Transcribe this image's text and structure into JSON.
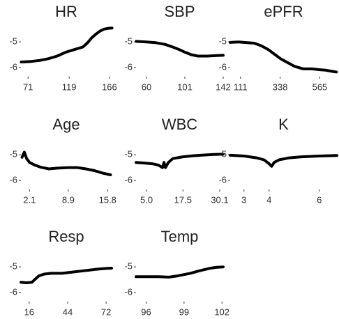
{
  "chart_data": [
    {
      "type": "line",
      "title": "HR",
      "color": "#000000",
      "x": [
        63,
        75,
        85,
        95,
        105,
        115,
        120,
        125,
        135,
        140,
        145,
        150,
        155,
        160,
        165,
        169
      ],
      "values": [
        -5.78,
        -5.76,
        -5.72,
        -5.65,
        -5.55,
        -5.4,
        -5.35,
        -5.3,
        -5.2,
        -5.05,
        -4.85,
        -4.7,
        -4.58,
        -4.5,
        -4.47,
        -4.46
      ],
      "xlim": [
        62.7,
        168.5
      ],
      "xticks": [
        71,
        119,
        166
      ],
      "ylim": [
        -6.35,
        -4.4
      ],
      "yticks": [
        -5,
        -6
      ]
    },
    {
      "type": "line",
      "title": "SBP",
      "color": "#000000",
      "x": [
        49,
        60,
        70,
        80,
        88,
        95,
        101,
        108,
        115,
        125,
        135,
        142
      ],
      "values": [
        -4.98,
        -5.0,
        -5.03,
        -5.1,
        -5.2,
        -5.3,
        -5.4,
        -5.5,
        -5.55,
        -5.55,
        -5.53,
        -5.52
      ],
      "xlim": [
        48.8,
        142
      ],
      "xticks": [
        60,
        101,
        142
      ],
      "ylim": [
        -6.35,
        -4.4
      ],
      "yticks": [
        -5,
        -6
      ]
    },
    {
      "type": "line",
      "title": "ePFR",
      "color": "#000000",
      "x": [
        52,
        100,
        150,
        190,
        230,
        270,
        310,
        340,
        380,
        420,
        470,
        520,
        560,
        600,
        640,
        660
      ],
      "values": [
        -5.02,
        -5.0,
        -5.03,
        -5.05,
        -5.15,
        -5.3,
        -5.5,
        -5.65,
        -5.8,
        -5.95,
        -6.05,
        -6.05,
        -6.08,
        -6.1,
        -6.15,
        -6.17
      ],
      "xlim": [
        52,
        663
      ],
      "xticks": [
        111,
        338,
        565
      ],
      "ylim": [
        -6.35,
        -4.4
      ],
      "yticks": [
        -5,
        -6
      ]
    },
    {
      "type": "line",
      "title": "Age",
      "color": "#000000",
      "x": [
        0.8,
        1.2,
        1.6,
        2.1,
        3,
        4,
        5.5,
        7,
        8.9,
        10.5,
        12,
        13.5,
        15,
        16.3
      ],
      "values": [
        -5.1,
        -4.9,
        -5.15,
        -5.3,
        -5.4,
        -5.48,
        -5.55,
        -5.52,
        -5.5,
        -5.5,
        -5.55,
        -5.62,
        -5.72,
        -5.78
      ],
      "xlim": [
        0.6,
        16.5
      ],
      "xticks": [
        2.1,
        8.9,
        15.8
      ],
      "ylim": [
        -6.35,
        -4.4
      ],
      "yticks": [
        -5,
        -6
      ]
    },
    {
      "type": "line",
      "title": "WBC",
      "color": "#000000",
      "x": [
        1.4,
        4,
        7,
        9,
        10.5,
        11,
        11.5,
        12.5,
        14,
        17.5,
        21,
        25,
        28,
        31.3
      ],
      "values": [
        -5.3,
        -5.32,
        -5.35,
        -5.4,
        -5.5,
        -5.3,
        -5.5,
        -5.3,
        -5.15,
        -5.08,
        -5.04,
        -5.01,
        -4.99,
        -4.98
      ],
      "xlim": [
        1.4,
        31.3
      ],
      "xticks": [
        {
          "value": 5,
          "label": "5.0"
        },
        17.5,
        30.1
      ],
      "ylim": [
        -6.35,
        -4.4
      ],
      "yticks": [
        -5,
        -6
      ]
    },
    {
      "type": "line",
      "title": "K",
      "color": "#000000",
      "x": [
        2.45,
        3,
        3.5,
        3.8,
        4.0,
        4.1,
        4.2,
        4.4,
        4.8,
        5.3,
        6,
        6.7
      ],
      "values": [
        -5.02,
        -5.05,
        -5.12,
        -5.2,
        -5.35,
        -5.45,
        -5.3,
        -5.2,
        -5.12,
        -5.08,
        -5.05,
        -5.03
      ],
      "xlim": [
        2.45,
        6.7
      ],
      "xticks": [
        3,
        4,
        6
      ],
      "ylim": [
        -6.35,
        -4.4
      ],
      "yticks": [
        -5,
        -6
      ]
    },
    {
      "type": "line",
      "title": "Resp",
      "color": "#000000",
      "x": [
        10,
        14,
        18,
        20,
        23,
        27,
        32,
        40,
        48,
        56,
        64,
        72,
        76
      ],
      "values": [
        -5.6,
        -5.62,
        -5.6,
        -5.5,
        -5.35,
        -5.28,
        -5.25,
        -5.25,
        -5.2,
        -5.15,
        -5.1,
        -5.06,
        -5.05
      ],
      "xlim": [
        10,
        76
      ],
      "xticks": [
        16,
        44,
        72
      ],
      "ylim": [
        -6.35,
        -4.4
      ],
      "yticks": [
        -5,
        -6
      ]
    },
    {
      "type": "line",
      "title": "Temp",
      "color": "#000000",
      "x": [
        95.2,
        96,
        97,
        97.8,
        98.5,
        99,
        99.5,
        100,
        100.5,
        101,
        101.5,
        102.1
      ],
      "values": [
        -5.38,
        -5.38,
        -5.38,
        -5.4,
        -5.35,
        -5.3,
        -5.25,
        -5.18,
        -5.12,
        -5.06,
        -5.02,
        -5.0
      ],
      "xlim": [
        95.2,
        102.1
      ],
      "xticks": [
        96,
        99,
        102
      ],
      "ylim": [
        -6.35,
        -4.4
      ],
      "yticks": [
        -5,
        -6
      ]
    }
  ]
}
